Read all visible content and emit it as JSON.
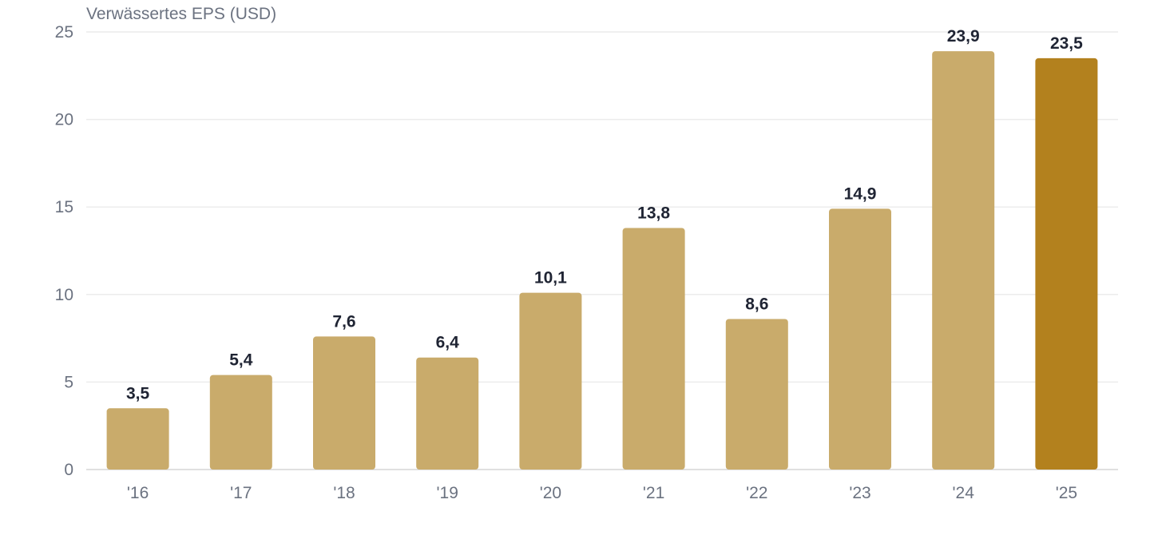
{
  "chart_data": {
    "type": "bar",
    "title": "Verwässertes EPS (USD)",
    "categories": [
      "'16",
      "'17",
      "'18",
      "'19",
      "'20",
      "'21",
      "'22",
      "'23",
      "'24",
      "'25"
    ],
    "values": [
      3.5,
      5.4,
      7.6,
      6.4,
      10.1,
      13.8,
      8.6,
      14.9,
      23.9,
      23.5
    ],
    "value_labels": [
      "3,5",
      "5,4",
      "7,6",
      "6,4",
      "10,1",
      "13,8",
      "8,6",
      "14,9",
      "23,9",
      "23,5"
    ],
    "yticks": [
      "0",
      "5",
      "10",
      "15",
      "20",
      "25"
    ],
    "ytick_values": [
      0,
      5,
      10,
      15,
      20,
      25
    ],
    "ylim": [
      0,
      25
    ],
    "grid": true,
    "colors": {
      "bar": "#c9ab6b",
      "highlight": "#b3811e"
    },
    "highlight_index": 9
  }
}
